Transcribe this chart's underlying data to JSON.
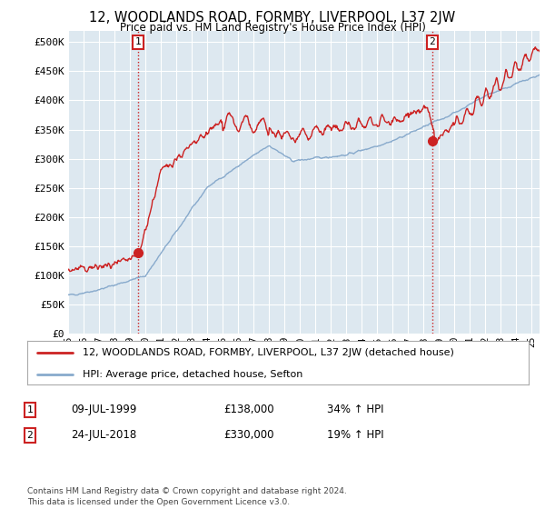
{
  "title": "12, WOODLANDS ROAD, FORMBY, LIVERPOOL, L37 2JW",
  "subtitle": "Price paid vs. HM Land Registry's House Price Index (HPI)",
  "ylabel_ticks": [
    "£0",
    "£50K",
    "£100K",
    "£150K",
    "£200K",
    "£250K",
    "£300K",
    "£350K",
    "£400K",
    "£450K",
    "£500K"
  ],
  "ytick_vals": [
    0,
    50000,
    100000,
    150000,
    200000,
    250000,
    300000,
    350000,
    400000,
    450000,
    500000
  ],
  "ylim": [
    0,
    520000
  ],
  "red_line_color": "#cc2222",
  "blue_line_color": "#88aacc",
  "bg_color": "#ffffff",
  "plot_bg_color": "#dde8f0",
  "grid_color": "#ffffff",
  "sale1_date": 1999.53,
  "sale1_price": 138000,
  "sale2_date": 2018.56,
  "sale2_price": 330000,
  "legend_label_red": "12, WOODLANDS ROAD, FORMBY, LIVERPOOL, L37 2JW (detached house)",
  "legend_label_blue": "HPI: Average price, detached house, Sefton",
  "table_row1": [
    "1",
    "09-JUL-1999",
    "£138,000",
    "34% ↑ HPI"
  ],
  "table_row2": [
    "2",
    "24-JUL-2018",
    "£330,000",
    "19% ↑ HPI"
  ],
  "footer": "Contains HM Land Registry data © Crown copyright and database right 2024.\nThis data is licensed under the Open Government Licence v3.0.",
  "dashed_vline_color": "#cc2222",
  "xmin": 1995,
  "xmax": 2025.5
}
